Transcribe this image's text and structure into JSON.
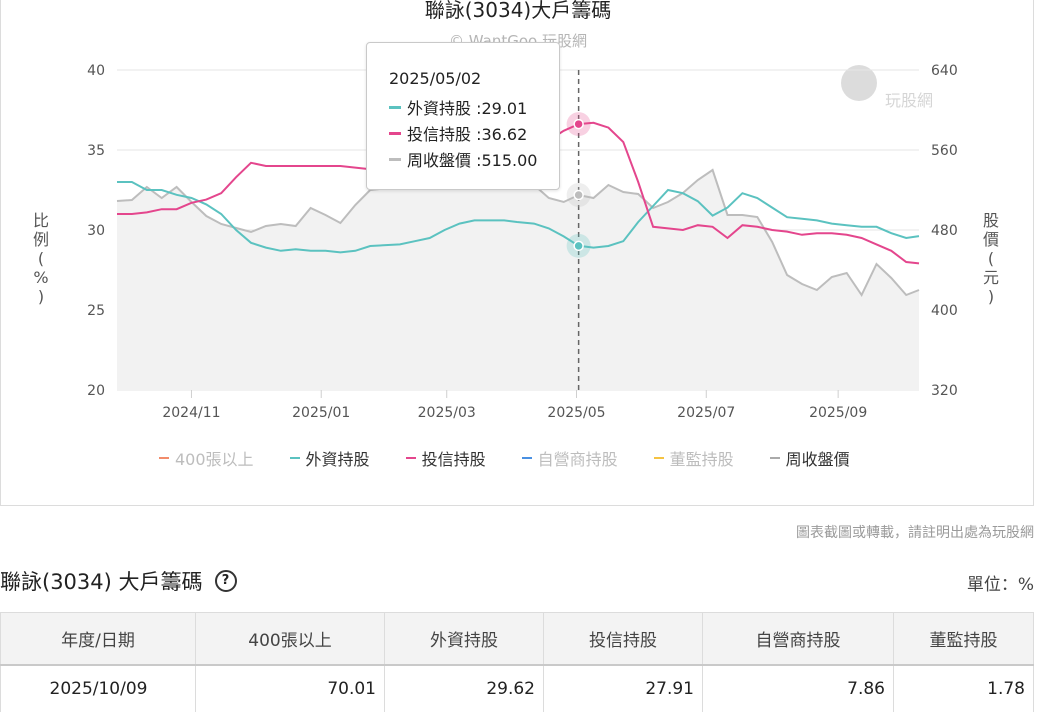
{
  "chart_data": {
    "type": "line",
    "title": "聯詠(3034)大戶籌碼",
    "subtitle": "© WantGoo 玩股網",
    "watermark": "玩股網",
    "ylabel_left": "比例 (%)",
    "ylabel_right": "股價 (元)",
    "ylim_left": [
      20,
      40
    ],
    "yticks_left": [
      "40",
      "35",
      "30",
      "25",
      "20"
    ],
    "ylim_right": [
      320,
      640
    ],
    "yticks_right": [
      "640",
      "560",
      "480",
      "400",
      "320"
    ],
    "x_start": "2024-09-27",
    "x_end": "2025-10-09",
    "xticks": [
      {
        "label": "2024/11",
        "date": "2024-11-01"
      },
      {
        "label": "2025/01",
        "date": "2025-01-01"
      },
      {
        "label": "2025/03",
        "date": "2025-03-01"
      },
      {
        "label": "2025/05",
        "date": "2025-05-01"
      },
      {
        "label": "2025/07",
        "date": "2025-07-01"
      },
      {
        "label": "2025/09",
        "date": "2025-09-01"
      }
    ],
    "grid": true,
    "series": [
      {
        "name": "400張以上",
        "color": "#f28c6b",
        "visible": false,
        "axis": "left",
        "values": []
      },
      {
        "name": "外資持股",
        "color": "#5bc2c0",
        "visible": true,
        "axis": "left",
        "values": [
          [
            "2024-09-27",
            33.0
          ],
          [
            "2024-10-04",
            33.0
          ],
          [
            "2024-10-11",
            32.5
          ],
          [
            "2024-10-18",
            32.5
          ],
          [
            "2024-10-25",
            32.2
          ],
          [
            "2024-11-01",
            32.0
          ],
          [
            "2024-11-08",
            31.6
          ],
          [
            "2024-11-15",
            31.0
          ],
          [
            "2024-11-22",
            30.0
          ],
          [
            "2024-11-29",
            29.2
          ],
          [
            "2024-12-06",
            28.9
          ],
          [
            "2024-12-13",
            28.7
          ],
          [
            "2024-12-20",
            28.8
          ],
          [
            "2024-12-27",
            28.7
          ],
          [
            "2025-01-03",
            28.7
          ],
          [
            "2025-01-10",
            28.6
          ],
          [
            "2025-01-17",
            28.7
          ],
          [
            "2025-01-24",
            29.0
          ],
          [
            "2025-02-07",
            29.1
          ],
          [
            "2025-02-14",
            29.3
          ],
          [
            "2025-02-21",
            29.5
          ],
          [
            "2025-02-28",
            30.0
          ],
          [
            "2025-03-07",
            30.4
          ],
          [
            "2025-03-14",
            30.6
          ],
          [
            "2025-03-21",
            30.6
          ],
          [
            "2025-03-28",
            30.6
          ],
          [
            "2025-04-03",
            30.5
          ],
          [
            "2025-04-11",
            30.4
          ],
          [
            "2025-04-18",
            30.1
          ],
          [
            "2025-04-25",
            29.6
          ],
          [
            "2025-05-02",
            29.01
          ],
          [
            "2025-05-09",
            28.9
          ],
          [
            "2025-05-16",
            29.0
          ],
          [
            "2025-05-23",
            29.3
          ],
          [
            "2025-05-30",
            30.5
          ],
          [
            "2025-06-06",
            31.5
          ],
          [
            "2025-06-13",
            32.5
          ],
          [
            "2025-06-20",
            32.3
          ],
          [
            "2025-06-27",
            31.8
          ],
          [
            "2025-07-04",
            30.9
          ],
          [
            "2025-07-11",
            31.4
          ],
          [
            "2025-07-18",
            32.3
          ],
          [
            "2025-07-25",
            32.0
          ],
          [
            "2025-08-01",
            31.4
          ],
          [
            "2025-08-08",
            30.8
          ],
          [
            "2025-08-15",
            30.7
          ],
          [
            "2025-08-22",
            30.6
          ],
          [
            "2025-08-29",
            30.4
          ],
          [
            "2025-09-05",
            30.3
          ],
          [
            "2025-09-12",
            30.2
          ],
          [
            "2025-09-19",
            30.2
          ],
          [
            "2025-09-26",
            29.8
          ],
          [
            "2025-10-03",
            29.5
          ],
          [
            "2025-10-09",
            29.62
          ]
        ]
      },
      {
        "name": "投信持股",
        "color": "#e4468d",
        "visible": true,
        "axis": "left",
        "values": [
          [
            "2024-09-27",
            31.0
          ],
          [
            "2024-10-04",
            31.0
          ],
          [
            "2024-10-11",
            31.1
          ],
          [
            "2024-10-18",
            31.3
          ],
          [
            "2024-10-25",
            31.3
          ],
          [
            "2024-11-01",
            31.7
          ],
          [
            "2024-11-08",
            31.9
          ],
          [
            "2024-11-15",
            32.3
          ],
          [
            "2024-11-22",
            33.3
          ],
          [
            "2024-11-29",
            34.2
          ],
          [
            "2024-12-06",
            34.0
          ],
          [
            "2024-12-13",
            34.0
          ],
          [
            "2024-12-20",
            34.0
          ],
          [
            "2024-12-27",
            34.0
          ],
          [
            "2025-01-03",
            34.0
          ],
          [
            "2025-01-10",
            34.0
          ],
          [
            "2025-01-17",
            33.9
          ],
          [
            "2025-01-24",
            33.8
          ],
          [
            "2025-04-18",
            35.6
          ],
          [
            "2025-04-25",
            36.2
          ],
          [
            "2025-05-02",
            36.62
          ],
          [
            "2025-05-09",
            36.7
          ],
          [
            "2025-05-16",
            36.4
          ],
          [
            "2025-05-23",
            35.5
          ],
          [
            "2025-05-30",
            33.0
          ],
          [
            "2025-06-06",
            30.2
          ],
          [
            "2025-06-13",
            30.1
          ],
          [
            "2025-06-20",
            30.0
          ],
          [
            "2025-06-27",
            30.3
          ],
          [
            "2025-07-04",
            30.2
          ],
          [
            "2025-07-11",
            29.5
          ],
          [
            "2025-07-18",
            30.3
          ],
          [
            "2025-07-25",
            30.2
          ],
          [
            "2025-08-01",
            30.0
          ],
          [
            "2025-08-08",
            29.9
          ],
          [
            "2025-08-15",
            29.7
          ],
          [
            "2025-08-22",
            29.8
          ],
          [
            "2025-08-29",
            29.8
          ],
          [
            "2025-09-05",
            29.7
          ],
          [
            "2025-09-12",
            29.5
          ],
          [
            "2025-09-19",
            29.1
          ],
          [
            "2025-09-26",
            28.7
          ],
          [
            "2025-10-03",
            28.0
          ],
          [
            "2025-10-09",
            27.91
          ]
        ]
      },
      {
        "name": "自營商持股",
        "color": "#4a90e2",
        "visible": false,
        "axis": "left",
        "values": []
      },
      {
        "name": "董監持股",
        "color": "#f5c342",
        "visible": false,
        "axis": "left",
        "values": []
      },
      {
        "name": "周收盤價",
        "color": "#bdbdbd",
        "visible": true,
        "axis": "right",
        "area": true,
        "values": [
          [
            "2024-09-27",
            509
          ],
          [
            "2024-10-04",
            510
          ],
          [
            "2024-10-11",
            523
          ],
          [
            "2024-10-18",
            512
          ],
          [
            "2024-10-25",
            523
          ],
          [
            "2024-11-01",
            508
          ],
          [
            "2024-11-08",
            494
          ],
          [
            "2024-11-15",
            486
          ],
          [
            "2024-11-22",
            482
          ],
          [
            "2024-11-29",
            478
          ],
          [
            "2024-12-06",
            484
          ],
          [
            "2024-12-13",
            486
          ],
          [
            "2024-12-20",
            484
          ],
          [
            "2024-12-27",
            502
          ],
          [
            "2025-01-03",
            495
          ],
          [
            "2025-01-10",
            487
          ],
          [
            "2025-01-17",
            505
          ],
          [
            "2025-01-24",
            520
          ],
          [
            "2025-04-03",
            535
          ],
          [
            "2025-04-11",
            525
          ],
          [
            "2025-04-18",
            512
          ],
          [
            "2025-04-25",
            508
          ],
          [
            "2025-05-02",
            515
          ],
          [
            "2025-05-09",
            512
          ],
          [
            "2025-05-16",
            525
          ],
          [
            "2025-05-23",
            518
          ],
          [
            "2025-05-30",
            516
          ],
          [
            "2025-06-06",
            502
          ],
          [
            "2025-06-13",
            508
          ],
          [
            "2025-06-20",
            517
          ],
          [
            "2025-06-27",
            530
          ],
          [
            "2025-07-04",
            540
          ],
          [
            "2025-07-11",
            495
          ],
          [
            "2025-07-18",
            495
          ],
          [
            "2025-07-25",
            493
          ],
          [
            "2025-08-01",
            468
          ],
          [
            "2025-08-08",
            435
          ],
          [
            "2025-08-15",
            426
          ],
          [
            "2025-08-22",
            420
          ],
          [
            "2025-08-29",
            433
          ],
          [
            "2025-09-05",
            437
          ],
          [
            "2025-09-12",
            415
          ],
          [
            "2025-09-19",
            446
          ],
          [
            "2025-09-26",
            432
          ],
          [
            "2025-10-03",
            415
          ],
          [
            "2025-10-09",
            420
          ]
        ]
      }
    ],
    "tooltip": {
      "date": "2025/05/02",
      "x": "2025-05-02",
      "rows": [
        {
          "name": "外資持股",
          "text": "外資持股 :29.01",
          "color": "#5bc2c0"
        },
        {
          "name": "投信持股",
          "text": "投信持股 :36.62",
          "color": "#e4468d"
        },
        {
          "name": "周收盤價",
          "text": "周收盤價 :515.00",
          "color": "#bdbdbd"
        }
      ]
    }
  },
  "credit": "圖表截圖或轉載，請註明出處為玩股網",
  "section": {
    "title": "聯詠(3034) 大戶籌碼",
    "help_icon": "?",
    "unit": "單位：%"
  },
  "table": {
    "headers": [
      "年度/日期",
      "400張以上",
      "外資持股",
      "投信持股",
      "自營商持股",
      "董監持股"
    ],
    "rows": [
      [
        "2025/10/09",
        "70.01",
        "29.62",
        "27.91",
        "7.86",
        "1.78"
      ]
    ]
  }
}
